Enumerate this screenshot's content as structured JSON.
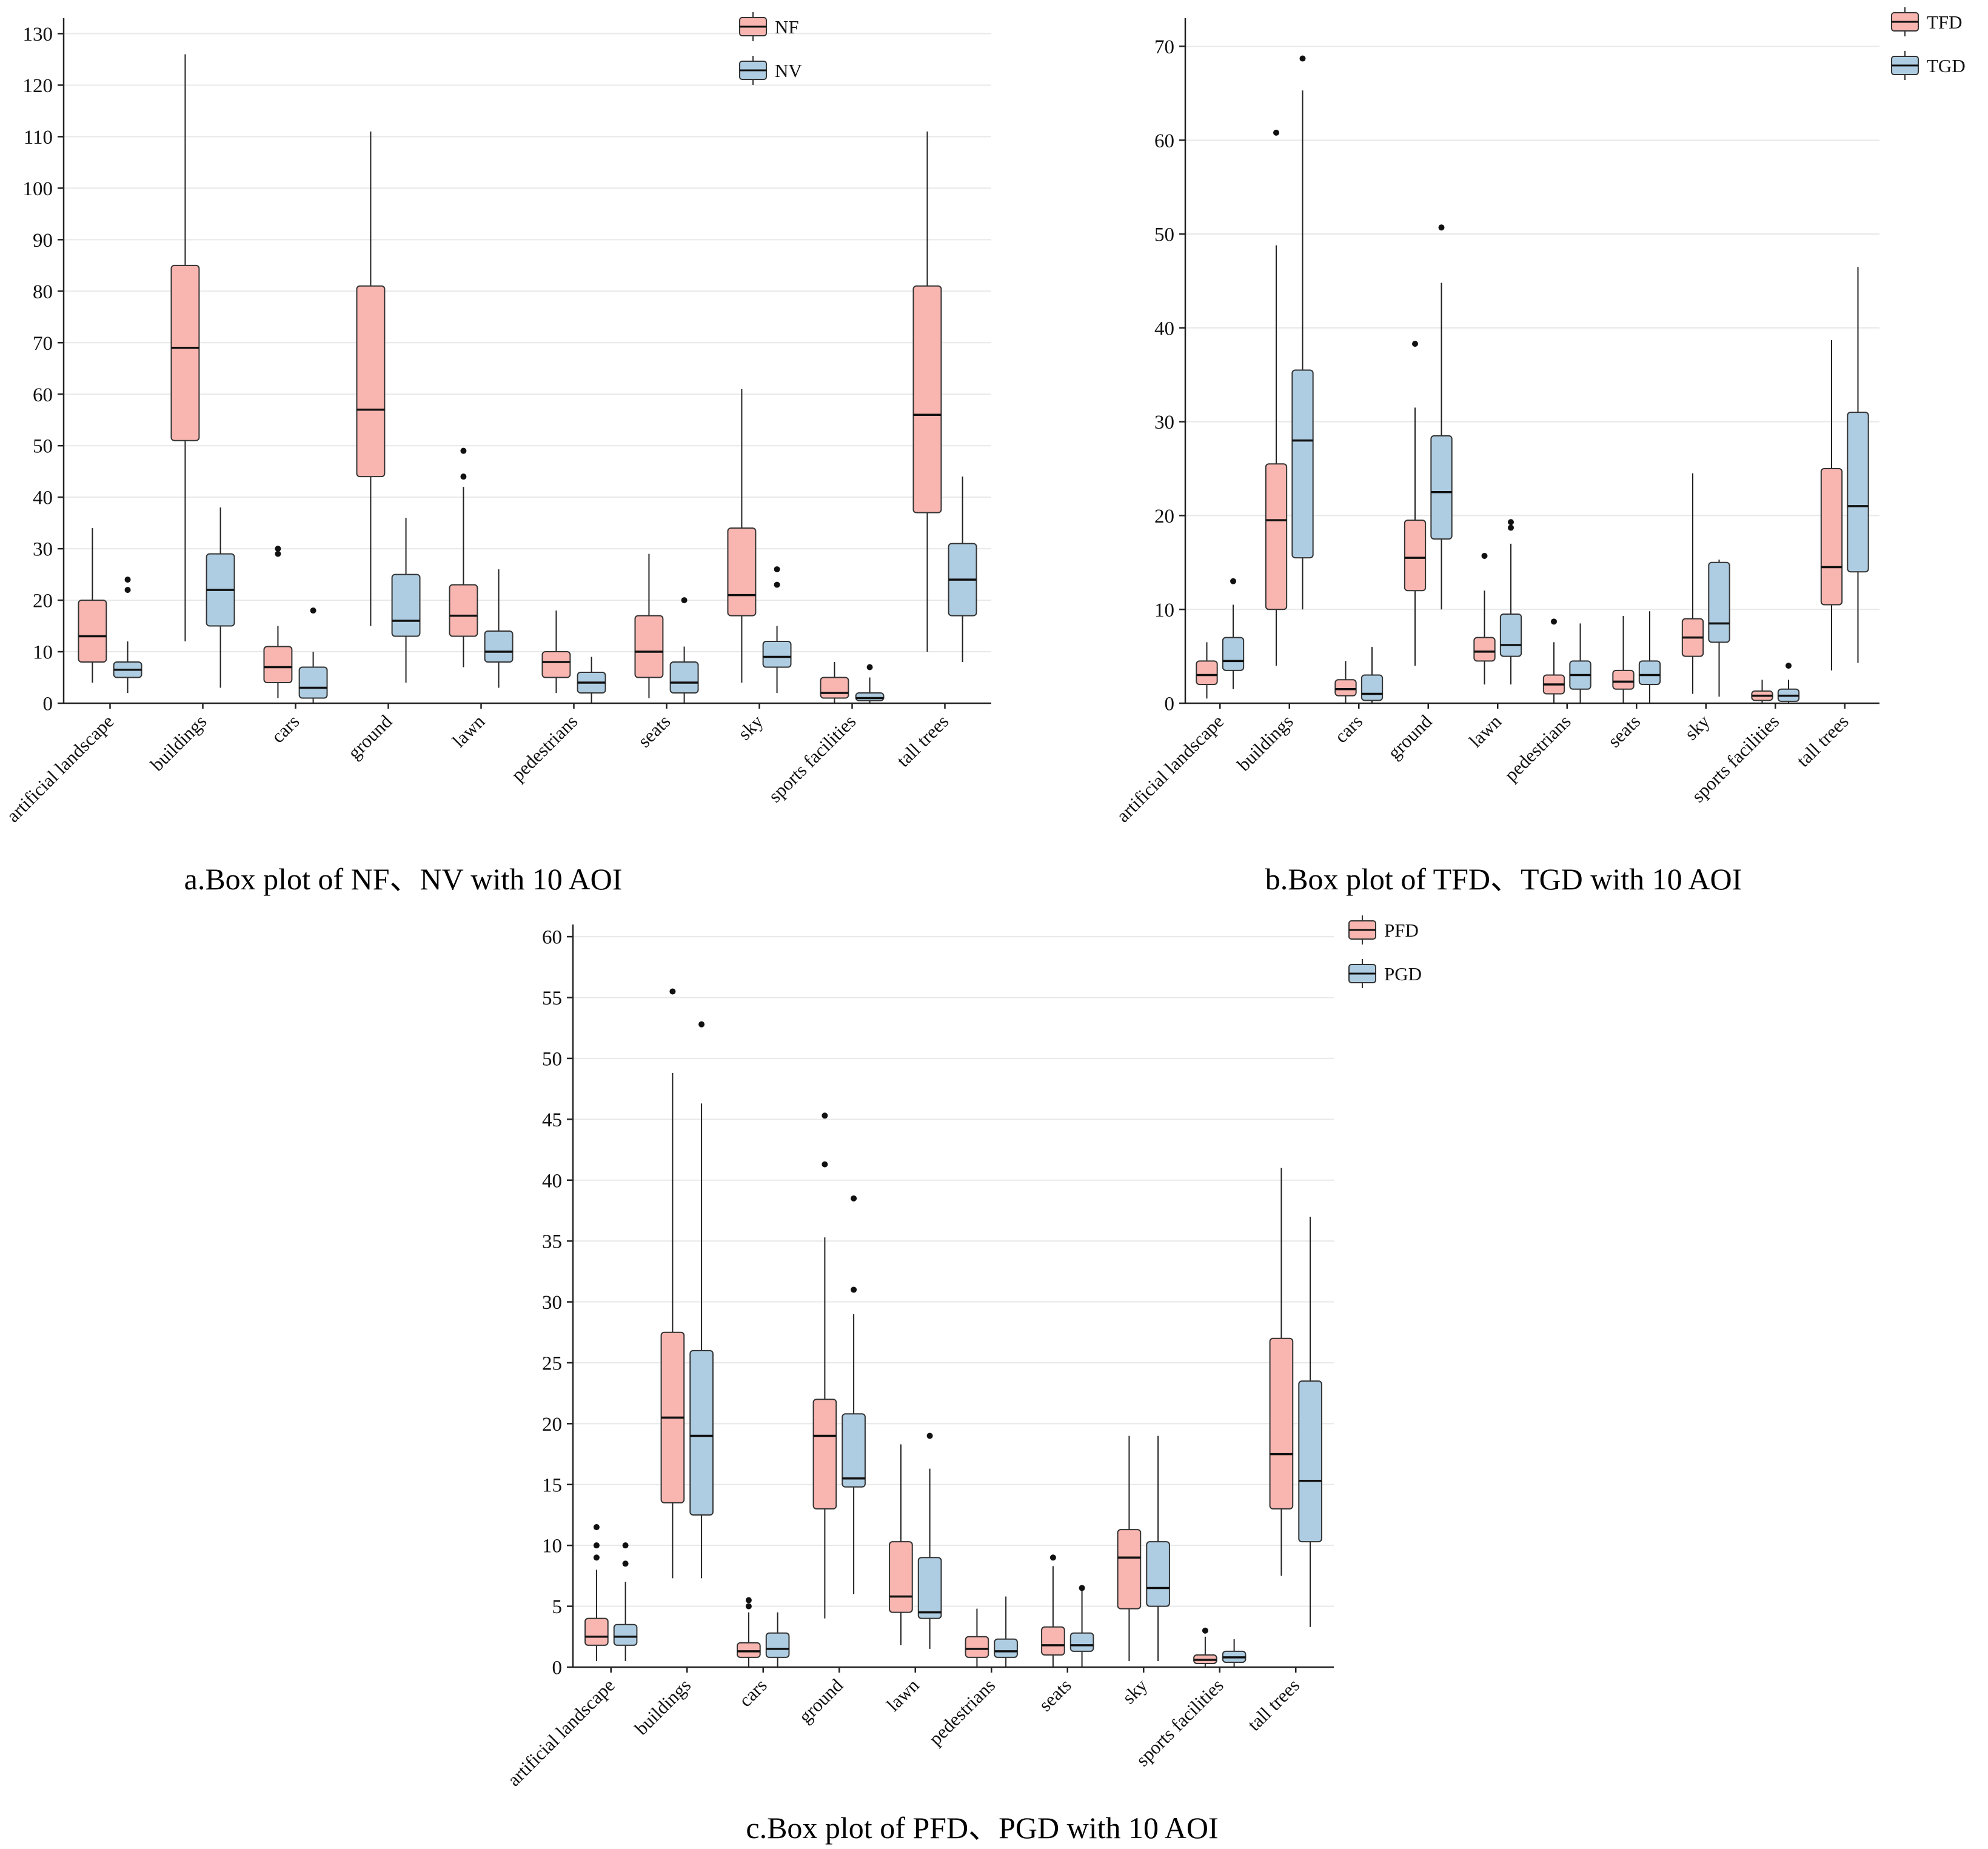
{
  "chart_data": [
    {
      "type": "boxplot",
      "title": "a.Box plot of NF、NV with 10 AOI",
      "xlabel": "",
      "ylabel": "",
      "ylim": [
        0,
        133
      ],
      "ytick_step": 10,
      "ytick_max": 130,
      "grid": "horizontal",
      "legend_position": "top-right",
      "categories": [
        "artificial landscape",
        "buildings",
        "cars",
        "ground",
        "lawn",
        "pedestrians",
        "seats",
        "sky",
        "sports facilities",
        "tall trees"
      ],
      "series": [
        {
          "name": "NF",
          "color": "#F9B6B0",
          "boxes": [
            [
              4,
              8,
              13,
              20,
              34
            ],
            [
              12,
              51,
              69,
              85,
              126
            ],
            [
              1,
              4,
              7,
              11,
              15
            ],
            [
              15,
              44,
              57,
              81,
              111
            ],
            [
              7,
              13,
              17,
              23,
              42
            ],
            [
              2,
              5,
              8,
              10,
              18
            ],
            [
              1,
              5,
              10,
              17,
              29
            ],
            [
              4,
              17,
              21,
              34,
              61
            ],
            [
              0,
              1,
              2,
              5,
              8
            ],
            [
              10,
              37,
              56,
              81,
              111
            ]
          ],
          "outliers": [
            [],
            [],
            [
              29,
              30
            ],
            [],
            [
              44,
              49
            ],
            [],
            [],
            [],
            [],
            []
          ]
        },
        {
          "name": "NV",
          "color": "#AECDE2",
          "boxes": [
            [
              2,
              5,
              6.5,
              8,
              12
            ],
            [
              3,
              15,
              22,
              29,
              38
            ],
            [
              0,
              1,
              3,
              7,
              10
            ],
            [
              4,
              13,
              16,
              25,
              36
            ],
            [
              3,
              8,
              10,
              14,
              26
            ],
            [
              0,
              2,
              4,
              6,
              9
            ],
            [
              0,
              2,
              4,
              8,
              11
            ],
            [
              2,
              7,
              9,
              12,
              15
            ],
            [
              0,
              0.5,
              1,
              2,
              5
            ],
            [
              8,
              17,
              24,
              31,
              44
            ]
          ],
          "outliers": [
            [
              22,
              24
            ],
            [],
            [
              18
            ],
            [],
            [],
            [],
            [
              20
            ],
            [
              23,
              26
            ],
            [
              7
            ],
            []
          ]
        }
      ]
    },
    {
      "type": "boxplot",
      "title": "b.Box plot of TFD、TGD with 10 AOI",
      "xlabel": "",
      "ylabel": "",
      "ylim": [
        0,
        73
      ],
      "ytick_step": 10,
      "ytick_max": 70,
      "grid": "horizontal",
      "legend_position": "top-right",
      "categories": [
        "artificial landscape",
        "buildings",
        "cars",
        "ground",
        "lawn",
        "pedestrians",
        "seats",
        "sky",
        "sports facilities",
        "tall trees"
      ],
      "series": [
        {
          "name": "TFD",
          "color": "#F9B6B0",
          "boxes": [
            [
              0.5,
              2,
              3,
              4.5,
              6.5
            ],
            [
              4,
              10,
              19.5,
              25.5,
              48.8
            ],
            [
              0,
              0.8,
              1.5,
              2.5,
              4.5
            ],
            [
              4,
              12,
              15.5,
              19.5,
              31.5
            ],
            [
              2,
              4.5,
              5.5,
              7,
              12
            ],
            [
              0,
              1,
              2,
              3,
              6.5
            ],
            [
              0,
              1.5,
              2.3,
              3.5,
              9.3
            ],
            [
              1,
              5,
              7,
              9,
              24.5
            ],
            [
              0,
              0.3,
              0.8,
              1.3,
              2.5
            ],
            [
              3.5,
              10.5,
              14.5,
              25,
              38.7
            ]
          ],
          "outliers": [
            [],
            [
              60.8
            ],
            [],
            [
              38.3
            ],
            [
              15.7
            ],
            [
              8.7
            ],
            [],
            [],
            [],
            []
          ]
        },
        {
          "name": "TGD",
          "color": "#AECDE2",
          "boxes": [
            [
              1.5,
              3.5,
              4.5,
              7,
              10.5
            ],
            [
              10,
              15.5,
              28,
              35.5,
              65.3
            ],
            [
              0,
              0.3,
              1,
              3,
              6
            ],
            [
              10,
              17.5,
              22.5,
              28.5,
              44.8
            ],
            [
              2,
              5,
              6.2,
              9.5,
              17
            ],
            [
              0,
              1.5,
              3,
              4.5,
              8.5
            ],
            [
              0,
              2,
              3,
              4.5,
              9.8
            ],
            [
              0.7,
              6.5,
              8.5,
              15,
              15.3
            ],
            [
              0,
              0.2,
              0.8,
              1.5,
              2.5
            ],
            [
              4.3,
              14,
              21,
              31,
              46.5
            ]
          ],
          "outliers": [
            [
              13
            ],
            [
              68.7
            ],
            [],
            [
              50.7
            ],
            [
              18.7,
              19.3
            ],
            [],
            [],
            [],
            [
              4
            ],
            []
          ]
        }
      ]
    },
    {
      "type": "boxplot",
      "title": "c.Box plot of PFD、PGD with 10 AOI",
      "xlabel": "",
      "ylabel": "",
      "ylim": [
        0,
        61
      ],
      "ytick_step": 5,
      "ytick_max": 60,
      "grid": "horizontal",
      "legend_position": "top-right",
      "categories": [
        "artificial landscape",
        "buildings",
        "cars",
        "ground",
        "lawn",
        "pedestrians",
        "seats",
        "sky",
        "sports facilities",
        "tall trees"
      ],
      "series": [
        {
          "name": "PFD",
          "color": "#F9B6B0",
          "boxes": [
            [
              0.5,
              1.8,
              2.5,
              4,
              8
            ],
            [
              7.3,
              13.5,
              20.5,
              27.5,
              48.8
            ],
            [
              0,
              0.8,
              1.3,
              2,
              4.5
            ],
            [
              4,
              13,
              19,
              22,
              35.3
            ],
            [
              1.8,
              4.5,
              5.8,
              10.3,
              18.3
            ],
            [
              0,
              0.8,
              1.5,
              2.5,
              4.8
            ],
            [
              0,
              1,
              1.8,
              3.3,
              8.3
            ],
            [
              0.5,
              4.8,
              9,
              11.3,
              19
            ],
            [
              0,
              0.3,
              0.6,
              1,
              2.5
            ],
            [
              7.5,
              13,
              17.5,
              27,
              41
            ]
          ],
          "outliers": [
            [
              9,
              10,
              11.5
            ],
            [
              55.5
            ],
            [
              5,
              5.5
            ],
            [
              41.3,
              45.3
            ],
            [],
            [],
            [
              9
            ],
            [],
            [
              3
            ],
            []
          ]
        },
        {
          "name": "PGD",
          "color": "#AECDE2",
          "boxes": [
            [
              0.5,
              1.8,
              2.5,
              3.5,
              7
            ],
            [
              7.3,
              12.5,
              19,
              26,
              46.3
            ],
            [
              0,
              0.8,
              1.5,
              2.8,
              4.5
            ],
            [
              6,
              14.8,
              15.5,
              20.8,
              29
            ],
            [
              1.5,
              4,
              4.5,
              9,
              16.3
            ],
            [
              0,
              0.8,
              1.3,
              2.3,
              5.8
            ],
            [
              0,
              1.3,
              1.8,
              2.8,
              6.3
            ],
            [
              0.5,
              5,
              6.5,
              10.3,
              19
            ],
            [
              0,
              0.4,
              0.8,
              1.3,
              2.3
            ],
            [
              3.3,
              10.3,
              15.3,
              23.5,
              37
            ]
          ],
          "outliers": [
            [
              8.5,
              10
            ],
            [
              52.8
            ],
            [],
            [
              31,
              38.5
            ],
            [
              19
            ],
            [],
            [
              6.5
            ],
            [],
            [],
            []
          ]
        }
      ]
    }
  ]
}
